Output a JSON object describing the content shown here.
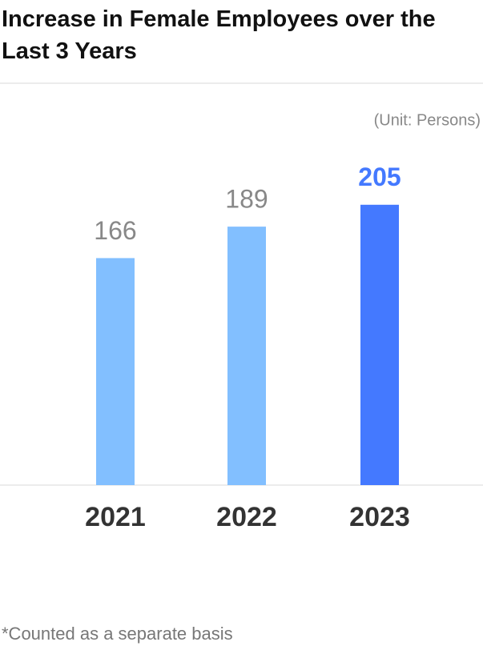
{
  "chart_data": {
    "type": "bar",
    "title": "Increase in Female Employees over the Last 3 Years",
    "unit": "(Unit: Persons)",
    "categories": [
      "2021",
      "2022",
      "2023"
    ],
    "values": [
      166,
      189,
      205
    ],
    "colors": [
      "#82bfff",
      "#82bfff",
      "#4479ff"
    ],
    "value_label_colors": [
      "#888888",
      "#888888",
      "#4479ff"
    ],
    "ylim": [
      0,
      240
    ],
    "footnote": "*Counted as a separate basis"
  }
}
